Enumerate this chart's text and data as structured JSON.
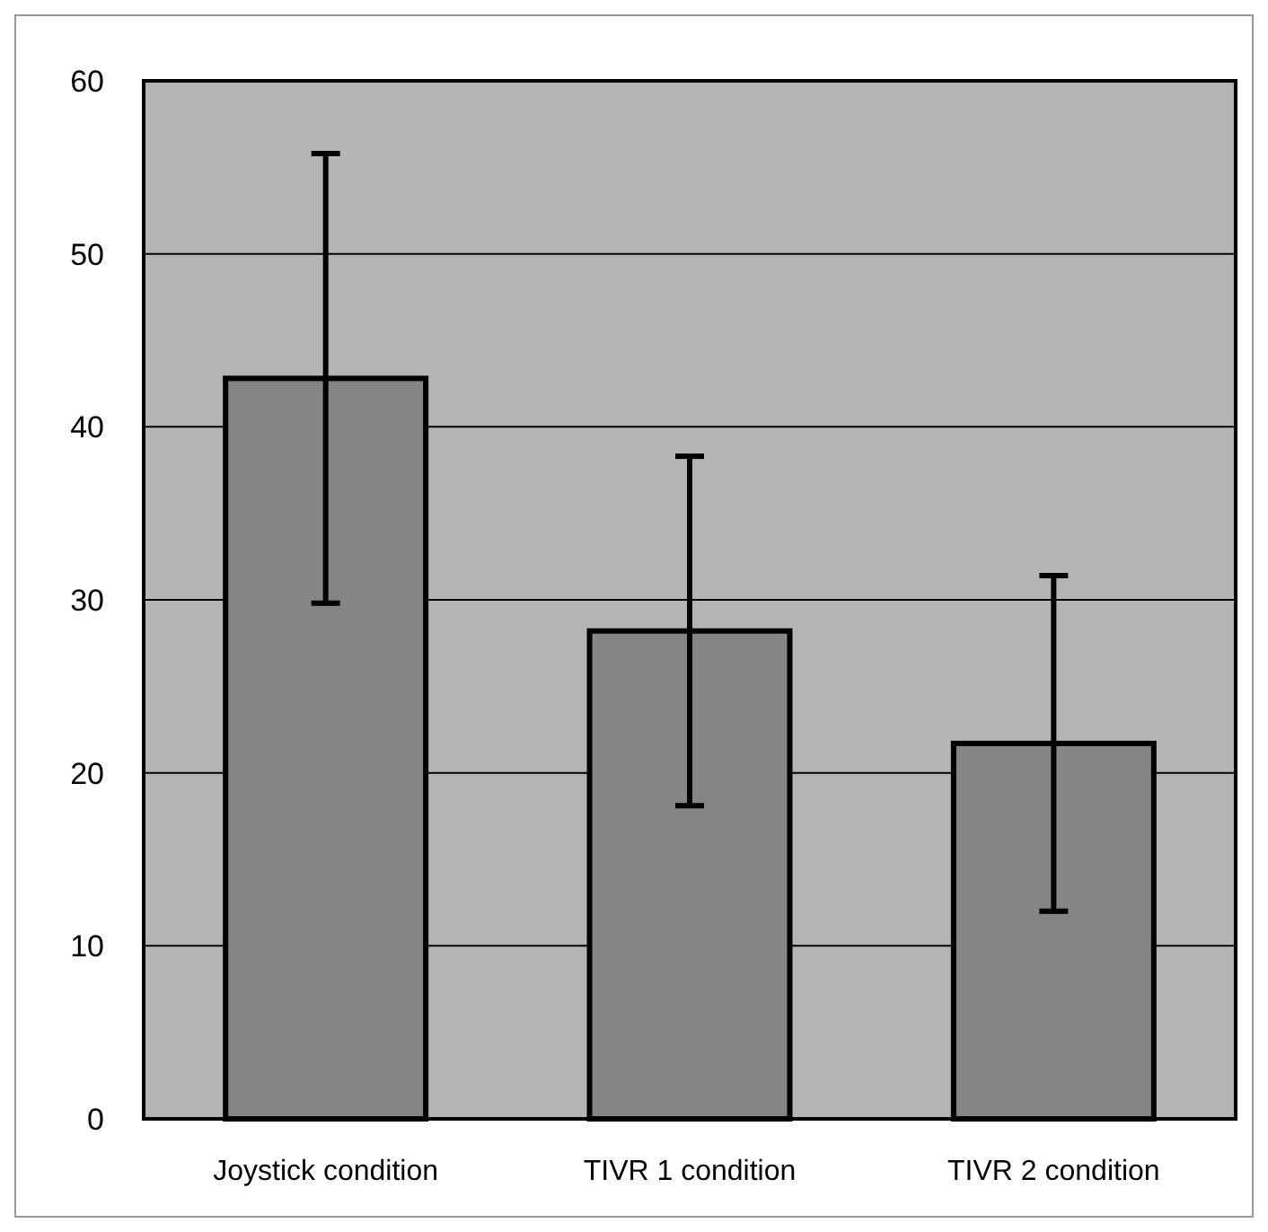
{
  "chart_data": {
    "type": "bar",
    "categories": [
      "Joystick condition",
      "TIVR 1 condition",
      "TIVR 2 condition"
    ],
    "values": [
      42.8,
      28.2,
      21.7
    ],
    "errors": [
      13,
      10.1,
      9.7
    ],
    "color": "#858585",
    "ylim": [
      0,
      60
    ],
    "yticks": [
      0,
      10,
      20,
      30,
      40,
      50,
      60
    ],
    "grid": "y"
  }
}
